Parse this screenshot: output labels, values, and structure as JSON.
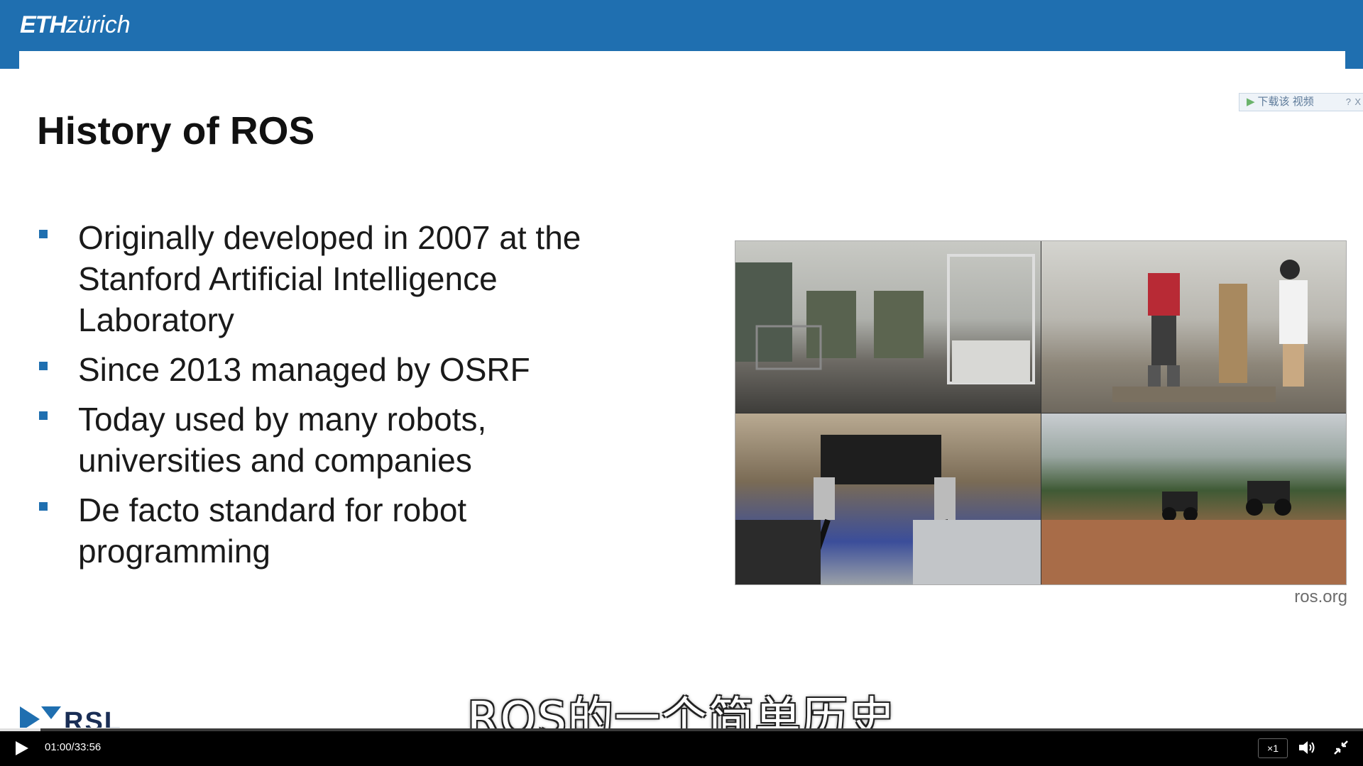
{
  "header": {
    "logo_eth": "ETH",
    "logo_zurich": "zürich"
  },
  "download_bar": {
    "label": "下载该 视频",
    "help": "?",
    "close": "X"
  },
  "slide": {
    "title": "History of ROS",
    "bullets": [
      "Originally developed in 2007 at the Stanford Artificial Intelligence Laboratory",
      "Since 2013 managed by OSRF",
      "Today used by many robots, universities and companies",
      "De facto standard for robot programming"
    ],
    "image_caption": "ros.org"
  },
  "subtitle": "ROS的一个简单历史",
  "player": {
    "time_current": "01:00",
    "time_total": "33:56",
    "time_separator": "/",
    "speed": "×1",
    "progress": 0.0295
  },
  "colors": {
    "eth_blue": "#1f6fb0",
    "bullet_blue": "#1f6fb0",
    "player_bg": "#000000"
  }
}
